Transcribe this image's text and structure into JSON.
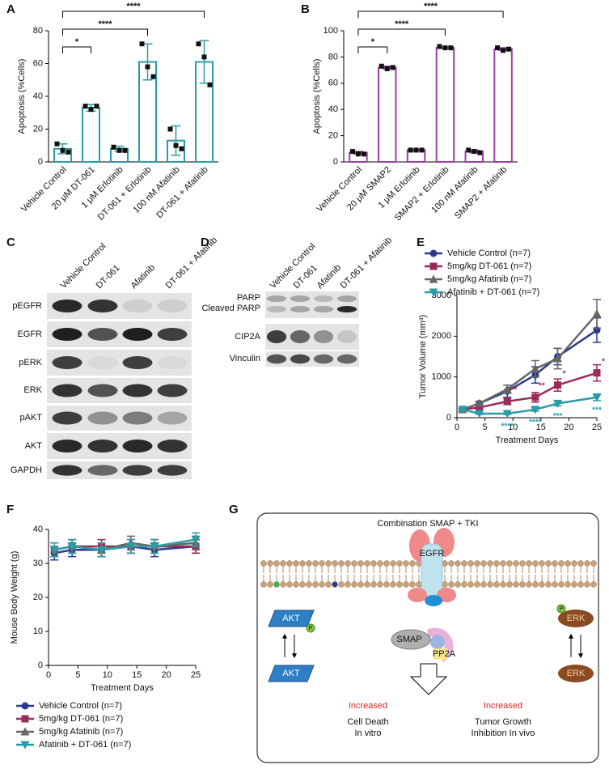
{
  "chart_data": [
    {
      "type": "bar",
      "panel": "A",
      "ylabel": "Apoptosis (%Cells)",
      "color": "#2a9ca8",
      "categories": [
        "Vehicle Control",
        "20 μM DT-061",
        "1 μM Erlotinib",
        "DT-061 + Erlotinib",
        "100 nM Afatinib",
        "DT-061 + Afatinib"
      ],
      "values": [
        8,
        33,
        8,
        61,
        13,
        61
      ],
      "errors": [
        3,
        2,
        1.5,
        11,
        9,
        13
      ],
      "points": [
        [
          11,
          7,
          6
        ],
        [
          34,
          32,
          34
        ],
        [
          9,
          7,
          7
        ],
        [
          72,
          58,
          52
        ],
        [
          20,
          10,
          8
        ],
        [
          72,
          64,
          47
        ]
      ],
      "ylim": [
        0,
        80
      ],
      "yticks": [
        0,
        20,
        40,
        60,
        80
      ],
      "brackets": [
        {
          "from": "Vehicle Control",
          "to": "20 μM DT-061",
          "label": "*"
        },
        {
          "from": "Vehicle Control",
          "to": "DT-061 + Erlotinib",
          "label": "****"
        },
        {
          "from": "Vehicle Control",
          "to": "DT-061 + Afatinib",
          "label": "****"
        }
      ]
    },
    {
      "type": "bar",
      "panel": "B",
      "ylabel": "Apoptosis (%Cells)",
      "color": "#9b3fa6",
      "categories": [
        "Vehicle Control",
        "20 μM SMAP2",
        "1 μM Erlotinib",
        "SMAP2 + Erlotinib",
        "100 nM Afatinib",
        "SMAP2 + Afatinib"
      ],
      "values": [
        7,
        72,
        9,
        87,
        8,
        86
      ],
      "errors": [
        1,
        1,
        0.5,
        0.5,
        1,
        1
      ],
      "points": [
        [
          8,
          6,
          6
        ],
        [
          73,
          71,
          72
        ],
        [
          9,
          9,
          9
        ],
        [
          88,
          87,
          87
        ],
        [
          9,
          8,
          7
        ],
        [
          87,
          85,
          86
        ]
      ],
      "ylim": [
        0,
        100
      ],
      "yticks": [
        0,
        20,
        40,
        60,
        80,
        100
      ],
      "brackets": [
        {
          "from": "Vehicle Control",
          "to": "20 μM SMAP2",
          "label": "*"
        },
        {
          "from": "Vehicle Control",
          "to": "SMAP2 + Erlotinib",
          "label": "****"
        },
        {
          "from": "Vehicle Control",
          "to": "SMAP2 + Afatinib",
          "label": "****"
        }
      ]
    },
    {
      "type": "line",
      "panel": "E",
      "ylabel": "Tumor Volume (mm³)",
      "xlabel": "Treatment Days",
      "legend": "top",
      "x": [
        1,
        4,
        9,
        14,
        18,
        25
      ],
      "xlim": [
        0,
        25
      ],
      "xticks": [
        0,
        5,
        10,
        15,
        20,
        25
      ],
      "ylim": [
        0,
        3000
      ],
      "yticks": [
        0,
        1000,
        2000,
        3000
      ],
      "series": [
        {
          "name": "Vehicle Control (n=7)",
          "color": "#2b3a8c",
          "marker": "circle",
          "values": [
            200,
            350,
            650,
            1050,
            1500,
            2150
          ],
          "errors": [
            30,
            50,
            150,
            200,
            200,
            300
          ]
        },
        {
          "name": "5mg/kg DT-061 (n=7)",
          "color": "#9b2a5a",
          "marker": "square",
          "values": [
            200,
            250,
            400,
            500,
            800,
            1100
          ],
          "errors": [
            30,
            40,
            80,
            120,
            150,
            200
          ],
          "significance": [
            null,
            null,
            "**",
            "**",
            "*",
            "*"
          ]
        },
        {
          "name": "5mg/kg Afatinib (n=7)",
          "color": "#666666",
          "marker": "triangle",
          "values": [
            200,
            350,
            700,
            1200,
            1450,
            2550
          ],
          "errors": [
            30,
            50,
            100,
            200,
            250,
            350
          ]
        },
        {
          "name": "Afatinib + DT-061 (n=7)",
          "color": "#2a9ca8",
          "marker": "triangle-down",
          "values": [
            200,
            100,
            100,
            200,
            350,
            500
          ],
          "errors": [
            30,
            20,
            20,
            40,
            60,
            80
          ],
          "significance": [
            null,
            null,
            "****",
            "****",
            "***",
            "***"
          ]
        }
      ]
    },
    {
      "type": "line",
      "panel": "F",
      "ylabel": "Mouse Body Weight (g)",
      "xlabel": "Treatment Days",
      "legend": "bottom",
      "x": [
        1,
        4,
        9,
        14,
        18,
        25
      ],
      "xlim": [
        0,
        25
      ],
      "xticks": [
        0,
        5,
        10,
        15,
        20,
        25
      ],
      "ylim": [
        0,
        40
      ],
      "yticks": [
        0,
        10,
        20,
        30,
        40
      ],
      "series": [
        {
          "name": "Vehicle Control (n=7)",
          "color": "#2b3a8c",
          "marker": "circle",
          "values": [
            33,
            34,
            34,
            35,
            34,
            35
          ],
          "errors": [
            2,
            2,
            2,
            2,
            2,
            2
          ]
        },
        {
          "name": "5mg/kg DT-061 (n=7)",
          "color": "#9b2a5a",
          "marker": "square",
          "values": [
            34,
            35,
            35,
            35,
            35,
            35
          ],
          "errors": [
            2,
            2,
            2,
            2,
            2,
            2
          ]
        },
        {
          "name": "5mg/kg Afatinib (n=7)",
          "color": "#666666",
          "marker": "triangle",
          "values": [
            34,
            35,
            34,
            36,
            35,
            36
          ],
          "errors": [
            2,
            2,
            2,
            2,
            2,
            2
          ]
        },
        {
          "name": "Afatinib + DT-061 (n=7)",
          "color": "#2a9ca8",
          "marker": "triangle-down",
          "values": [
            34,
            35,
            34,
            35,
            35,
            37
          ],
          "errors": [
            2,
            2,
            2,
            2,
            2,
            2
          ]
        }
      ]
    }
  ],
  "blots": [
    {
      "panel": "C",
      "columns": [
        "Vehicle Control",
        "DT-061",
        "Afatinib",
        "DT-061 + Afatinib"
      ],
      "rows": [
        "pEGFR",
        "EGFR",
        "pERK",
        "ERK",
        "pAKT",
        "AKT",
        "GAPDH"
      ]
    },
    {
      "panel": "D",
      "columns": [
        "Vehicle Control",
        "DT-061",
        "Afatinib",
        "DT-061 + Afatinib"
      ],
      "rows": [
        "PARP",
        "Cleaved PARP",
        "CIP2A",
        "Vinculin"
      ]
    }
  ],
  "diagram": {
    "panel": "G",
    "title": "Combination SMAP + TKI",
    "receptor": "EGFR",
    "akt_active": "AKT",
    "akt_phospho": "P",
    "erk_active": "ERK",
    "erk_phospho": "P",
    "smap": "SMAP",
    "pp2a": "PP2A",
    "akt_inactive": "AKT",
    "erk_inactive": "ERK",
    "outcome_left": {
      "change": "Increased",
      "effect": [
        "Cell Death",
        "In vitro"
      ]
    },
    "outcome_right": {
      "change": "Increased",
      "effect": [
        "Tumor Growth",
        "Inhibition In vivo"
      ]
    }
  }
}
